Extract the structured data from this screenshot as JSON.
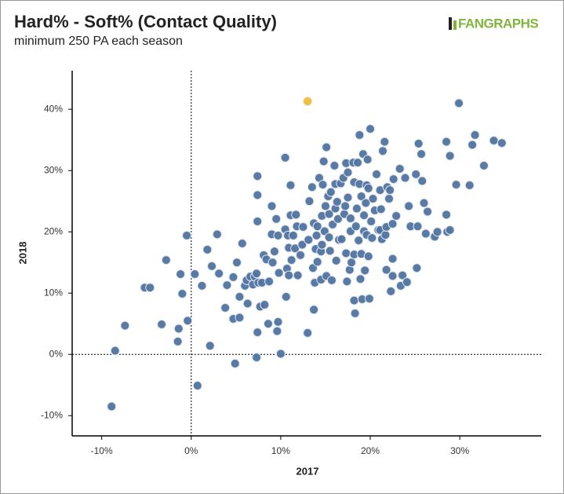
{
  "chart_data": {
    "type": "scatter",
    "title": "Hard% - Soft% (Contact Quality)",
    "subtitle": "minimum 250 PA each season",
    "logo": "FANGRAPHS",
    "x_label": "2017",
    "y_label": "2018",
    "xlim": [
      -13.3,
      39.1
    ],
    "ylim": [
      -13.3,
      46.3
    ],
    "xticks": [
      {
        "value": -10,
        "label": "-10%"
      },
      {
        "value": 0,
        "label": "0%"
      },
      {
        "value": 10,
        "label": "10%"
      },
      {
        "value": 20,
        "label": "20%"
      },
      {
        "value": 30,
        "label": "30%"
      }
    ],
    "yticks": [
      {
        "value": -10,
        "label": "-10%"
      },
      {
        "value": 0,
        "label": "0%"
      },
      {
        "value": 10,
        "label": "10%"
      },
      {
        "value": 20,
        "label": "20%"
      },
      {
        "value": 30,
        "label": "30%"
      },
      {
        "value": 40,
        "label": "40%"
      }
    ],
    "series": [
      {
        "color": "#50739f",
        "x": [
          -8.9,
          -8.5,
          -7.4,
          -5.2,
          -4.6,
          -3.3,
          -2.8,
          -1.5,
          -1.4,
          -1.2,
          -1.0,
          -0.5,
          -0.4,
          0.4,
          0.7,
          1.2,
          1.8,
          2.1,
          2.3,
          2.9,
          3.1,
          3.8,
          4.0,
          4.7,
          4.7,
          4.9,
          5.1,
          5.4,
          5.4,
          5.7,
          6.0,
          6.2,
          6.3,
          6.6,
          6.9,
          7.1,
          7.3,
          7.3,
          7.4,
          7.4,
          7.4,
          7.4,
          7.5,
          7.7,
          7.9,
          8.1,
          8.2,
          8.4,
          8.6,
          8.7,
          9.0,
          9.0,
          9.1,
          9.3,
          9.5,
          9.6,
          9.7,
          9.7,
          9.8,
          10.0,
          10.5,
          10.5,
          10.6,
          10.7,
          10.8,
          10.9,
          10.9,
          11.1,
          11.1,
          11.2,
          11.4,
          11.6,
          11.7,
          11.8,
          11.9,
          12.2,
          12.4,
          12.5,
          13.0,
          13.1,
          13.2,
          13.5,
          13.6,
          13.7,
          13.7,
          13.8,
          13.9,
          14.0,
          14.1,
          14.1,
          14.3,
          14.5,
          14.5,
          14.6,
          14.6,
          14.7,
          14.8,
          14.9,
          15.0,
          15.1,
          15.1,
          15.3,
          15.4,
          15.4,
          15.5,
          15.6,
          15.7,
          15.8,
          16.0,
          16.1,
          16.1,
          16.2,
          16.3,
          16.4,
          16.5,
          16.7,
          16.8,
          17.0,
          17.1,
          17.2,
          17.3,
          17.3,
          17.4,
          17.5,
          17.5,
          17.7,
          17.8,
          17.8,
          17.9,
          18.1,
          18.2,
          18.2,
          18.2,
          18.3,
          18.4,
          18.5,
          18.6,
          18.7,
          18.8,
          18.8,
          18.9,
          19.0,
          19.0,
          19.1,
          19.2,
          19.3,
          19.3,
          19.4,
          19.5,
          19.6,
          19.6,
          19.7,
          19.8,
          19.8,
          19.9,
          20.0,
          20.1,
          20.2,
          20.3,
          20.5,
          20.7,
          20.9,
          21.1,
          21.1,
          21.2,
          21.3,
          21.4,
          21.6,
          21.7,
          21.8,
          21.8,
          21.9,
          22.1,
          22.2,
          22.3,
          22.5,
          22.5,
          22.5,
          22.6,
          22.9,
          23.3,
          23.4,
          23.6,
          23.9,
          24.1,
          24.3,
          24.5,
          25.1,
          25.2,
          25.3,
          25.4,
          25.7,
          25.8,
          26.0,
          26.2,
          26.4,
          27.2,
          27.5,
          28.5,
          28.5,
          28.6,
          28.9,
          28.9,
          29.6,
          29.9,
          31.1,
          31.4,
          31.7,
          32.7,
          33.8,
          34.7
        ],
        "y": [
          -8.5,
          0.6,
          4.7,
          10.9,
          10.9,
          4.9,
          15.4,
          2.1,
          4.2,
          13.1,
          9.9,
          19.4,
          5.5,
          13.1,
          -5.1,
          11.2,
          17.1,
          1.4,
          14.4,
          19.6,
          13.2,
          7.6,
          11.3,
          12.6,
          5.8,
          -1.5,
          15.0,
          6.0,
          9.4,
          18.1,
          11.2,
          12.1,
          8.3,
          12.7,
          11.4,
          12.7,
          13.2,
          -0.5,
          26.0,
          29.1,
          21.7,
          3.6,
          11.7,
          7.8,
          11.7,
          16.2,
          8.1,
          15.5,
          5.0,
          11.9,
          24.2,
          19.6,
          15.0,
          16.8,
          22.1,
          3.8,
          5.3,
          19.4,
          13.3,
          0.1,
          32.1,
          20.4,
          9.4,
          14.0,
          19.4,
          12.9,
          17.4,
          27.6,
          22.7,
          15.4,
          19.4,
          17.3,
          22.8,
          20.9,
          12.9,
          16.2,
          17.9,
          20.8,
          3.5,
          18.7,
          25.0,
          27.3,
          14.1,
          7.3,
          21.4,
          11.7,
          17.2,
          19.4,
          15.1,
          20.9,
          28.8,
          16.8,
          12.2,
          22.6,
          17.9,
          27.7,
          31.5,
          20.1,
          24.2,
          33.8,
          12.8,
          25.8,
          19.1,
          22.9,
          16.9,
          26.5,
          12.1,
          21.2,
          30.8,
          27.8,
          23.8,
          15.3,
          24.9,
          22.1,
          18.7,
          27.9,
          18.8,
          28.8,
          22.9,
          24.2,
          16.5,
          31.2,
          11.9,
          25.6,
          29.7,
          13.8,
          22.2,
          20.1,
          15.0,
          31.3,
          8.8,
          16.3,
          28.1,
          6.7,
          20.9,
          23.8,
          31.3,
          18.6,
          27.8,
          35.8,
          12.3,
          16.4,
          25.8,
          9.0,
          32.7,
          22.7,
          20.1,
          13.7,
          24.7,
          19.5,
          27.6,
          31.8,
          27.1,
          16.0,
          9.1,
          36.8,
          21.7,
          19.0,
          25.4,
          23.5,
          29.4,
          20.3,
          26.8,
          20.3,
          23.7,
          18.8,
          33.2,
          34.7,
          19.5,
          13.8,
          20.8,
          27.3,
          25.4,
          26.8,
          10.3,
          12.8,
          21.3,
          15.6,
          28.6,
          22.6,
          30.3,
          11.2,
          12.9,
          28.8,
          11.8,
          24.2,
          20.9,
          29.4,
          14.1,
          20.9,
          34.4,
          32.7,
          28.3,
          24.7,
          19.7,
          23.3,
          19.2,
          20.0,
          22.8,
          34.7,
          20.0,
          20.3,
          32.4,
          27.7,
          41.0,
          27.6,
          34.2,
          35.8,
          30.8,
          34.9,
          34.5
        ]
      },
      {
        "color": "#f5bc2a",
        "x": [
          13.0
        ],
        "y": [
          41.3
        ]
      }
    ]
  }
}
